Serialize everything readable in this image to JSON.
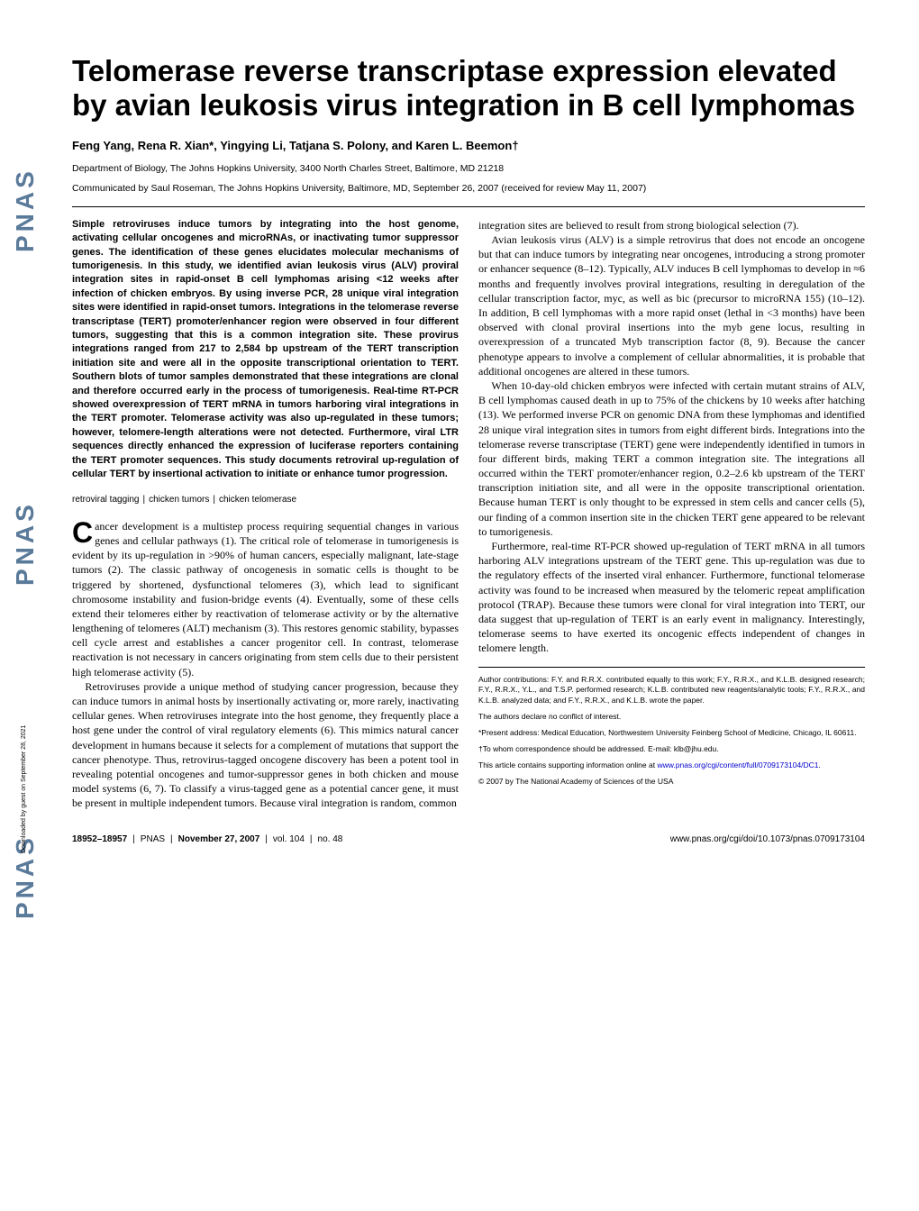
{
  "journal_logo": "PNAS",
  "download_note": "Downloaded by guest on September 28, 2021",
  "title": "Telomerase reverse transcriptase expression elevated by avian leukosis virus integration in B cell lymphomas",
  "authors": "Feng Yang, Rena R. Xian*, Yingying Li, Tatjana S. Polony, and Karen L. Beemon†",
  "affiliation": "Department of Biology, The Johns Hopkins University, 3400 North Charles Street, Baltimore, MD 21218",
  "communicated": "Communicated by Saul Roseman, The Johns Hopkins University, Baltimore, MD, September 26, 2007 (received for review May 11, 2007)",
  "abstract": "Simple retroviruses induce tumors by integrating into the host genome, activating cellular oncogenes and microRNAs, or inactivating tumor suppressor genes. The identification of these genes elucidates molecular mechanisms of tumorigenesis. In this study, we identified avian leukosis virus (ALV) proviral integration sites in rapid-onset B cell lymphomas arising <12 weeks after infection of chicken embryos. By using inverse PCR, 28 unique viral integration sites were identified in rapid-onset tumors. Integrations in the telomerase reverse transcriptase (TERT) promoter/enhancer region were observed in four different tumors, suggesting that this is a common integration site. These provirus integrations ranged from 217 to 2,584 bp upstream of the TERT transcription initiation site and were all in the opposite transcriptional orientation to TERT. Southern blots of tumor samples demonstrated that these integrations are clonal and therefore occurred early in the process of tumorigenesis. Real-time RT-PCR showed overexpression of TERT mRNA in tumors harboring viral integrations in the TERT promoter. Telomerase activity was also up-regulated in these tumors; however, telomere-length alterations were not detected. Furthermore, viral LTR sequences directly enhanced the expression of luciferase reporters containing the TERT promoter sequences. This study documents retroviral up-regulation of cellular TERT by insertional activation to initiate or enhance tumor progression.",
  "keywords": {
    "k1": "retroviral tagging",
    "k2": "chicken tumors",
    "k3": "chicken telomerase"
  },
  "body": {
    "p1a": "C",
    "p1b": "ancer development is a multistep process requiring sequential changes in various genes and cellular pathways (1). The critical role of telomerase in tumorigenesis is evident by its up-regulation in >90% of human cancers, especially malignant, late-stage tumors (2). The classic pathway of oncogenesis in somatic cells is thought to be triggered by shortened, dysfunctional telomeres (3), which lead to significant chromosome instability and fusion-bridge events (4). Eventually, some of these cells extend their telomeres either by reactivation of telomerase activity or by the alternative lengthening of telomeres (ALT) mechanism (3). This restores genomic stability, bypasses cell cycle arrest and establishes a cancer progenitor cell. In contrast, telomerase reactivation is not necessary in cancers originating from stem cells due to their persistent high telomerase activity (5).",
    "p2": "Retroviruses provide a unique method of studying cancer progression, because they can induce tumors in animal hosts by insertionally activating or, more rarely, inactivating cellular genes. When retroviruses integrate into the host genome, they frequently place a host gene under the control of viral regulatory elements (6). This mimics natural cancer development in humans because it selects for a complement of mutations that support the cancer phenotype. Thus, retrovirus-tagged oncogene discovery has been a potent tool in revealing potential oncogenes and tumor-suppressor genes in both chicken and mouse model systems (6, 7). To classify a virus-tagged gene as a potential cancer gene, it must be present in multiple independent tumors. Because viral integration is random, common",
    "p3": "integration sites are believed to result from strong biological selection (7).",
    "p4": "Avian leukosis virus (ALV) is a simple retrovirus that does not encode an oncogene but that can induce tumors by integrating near oncogenes, introducing a strong promoter or enhancer sequence (8–12). Typically, ALV induces B cell lymphomas to develop in ≈6 months and frequently involves proviral integrations, resulting in deregulation of the cellular transcription factor, myc, as well as bic (precursor to microRNA 155) (10–12). In addition, B cell lymphomas with a more rapid onset (lethal in <3 months) have been observed with clonal proviral insertions into the myb gene locus, resulting in overexpression of a truncated Myb transcription factor (8, 9). Because the cancer phenotype appears to involve a complement of cellular abnormalities, it is probable that additional oncogenes are altered in these tumors.",
    "p5": "When 10-day-old chicken embryos were infected with certain mutant strains of ALV, B cell lymphomas caused death in up to 75% of the chickens by 10 weeks after hatching (13). We performed inverse PCR on genomic DNA from these lymphomas and identified 28 unique viral integration sites in tumors from eight different birds. Integrations into the telomerase reverse transcriptase (TERT) gene were independently identified in tumors in four different birds, making TERT a common integration site. The integrations all occurred within the TERT promoter/enhancer region, 0.2–2.6 kb upstream of the TERT transcription initiation site, and all were in the opposite transcriptional orientation. Because human TERT is only thought to be expressed in stem cells and cancer cells (5), our finding of a common insertion site in the chicken TERT gene appeared to be relevant to tumorigenesis.",
    "p6": "Furthermore, real-time RT-PCR showed up-regulation of TERT mRNA in all tumors harboring ALV integrations upstream of the TERT gene. This up-regulation was due to the regulatory effects of the inserted viral enhancer. Furthermore, functional telomerase activity was found to be increased when measured by the telomeric repeat amplification protocol (TRAP). Because these tumors were clonal for viral integration into TERT, our data suggest that up-regulation of TERT is an early event in malignancy. Interestingly, telomerase seems to have exerted its oncogenic effects independent of changes in telomere length."
  },
  "author_info": {
    "contributions": "Author contributions: F.Y. and R.R.X. contributed equally to this work; F.Y., R.R.X., and K.L.B. designed research; F.Y., R.R.X., Y.L., and T.S.P. performed research; K.L.B. contributed new reagents/analytic tools; F.Y., R.R.X., and K.L.B. analyzed data; and F.Y., R.R.X., and K.L.B. wrote the paper.",
    "conflict": "The authors declare no conflict of interest.",
    "present": "*Present address: Medical Education, Northwestern University Feinberg School of Medicine, Chicago, IL 60611.",
    "corr": "†To whom correspondence should be addressed. E-mail: klb@jhu.edu.",
    "supp_pre": "This article contains supporting information online at ",
    "supp_link": "www.pnas.org/cgi/content/full/0709173104/DC1",
    "supp_post": ".",
    "copyright": "© 2007 by The National Academy of Sciences of the USA"
  },
  "footer": {
    "pages": "18952–18957",
    "journal": "PNAS",
    "date": "November 27, 2007",
    "vol": "vol. 104",
    "issue": "no. 48",
    "url": "www.pnas.org/cgi/doi/10.1073/pnas.0709173104"
  }
}
